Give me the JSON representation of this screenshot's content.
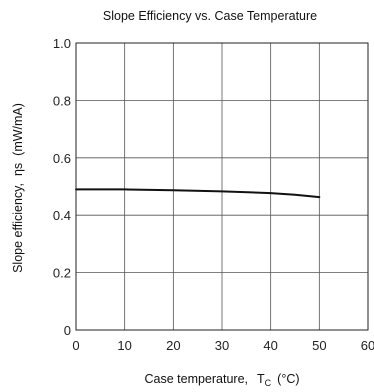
{
  "chart_data": {
    "type": "line",
    "title": "Slope Efficiency vs. Case Temperature",
    "xlabel": "Case temperature,",
    "xlabel_symbol": "T",
    "xlabel_subscript": "C",
    "xlabel_unit": "(°C)",
    "ylabel": "Slope efficiency,",
    "ylabel_symbol": "ηs",
    "ylabel_unit": "(mW/mA)",
    "xlim": [
      0,
      60
    ],
    "ylim": [
      0,
      1.0
    ],
    "x_ticks": [
      0,
      10,
      20,
      30,
      40,
      50,
      60
    ],
    "x_tick_labels": [
      "0",
      "10",
      "20",
      "30",
      "40",
      "50",
      "60"
    ],
    "y_ticks": [
      0,
      0.2,
      0.4,
      0.6,
      0.8,
      1.0
    ],
    "y_tick_labels": [
      "0",
      "0.2",
      "0.4",
      "0.6",
      "0.8",
      "1.0"
    ],
    "grid": true,
    "series": [
      {
        "x": [
          0,
          10,
          20,
          30,
          40,
          45,
          50
        ],
        "y": [
          0.49,
          0.49,
          0.487,
          0.483,
          0.477,
          0.471,
          0.463
        ],
        "color": "#111111"
      }
    ]
  }
}
